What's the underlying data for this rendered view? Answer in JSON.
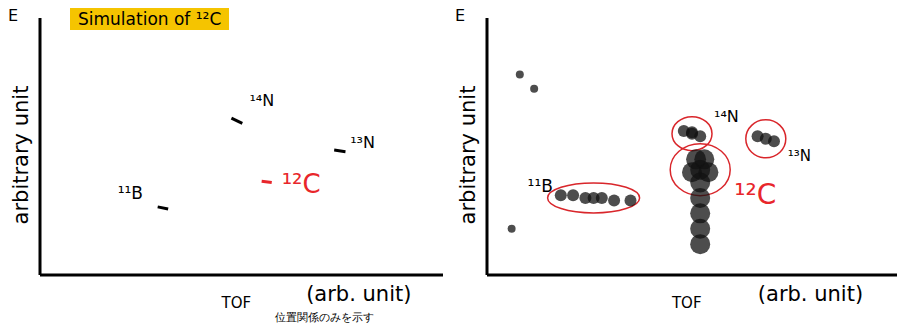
{
  "chart_data": [
    {
      "type": "scatter",
      "title": "Simulation of ¹²C",
      "xlabel": "TOF",
      "x_unit_label": "(arb. unit)",
      "ylabel": "arbitrary unit",
      "y_corner_label": "E",
      "annotation": "位置関係のみを示す",
      "xlim": [
        0,
        100
      ],
      "ylim": [
        0,
        100
      ],
      "tick_labels": false,
      "marker": "none",
      "line_style": "solid",
      "series": [
        {
          "name": "¹⁴N",
          "color": "#000000",
          "x": [
            47.5,
            50.2
          ],
          "values": [
            61,
            59
          ]
        },
        {
          "name": "¹³N",
          "color": "#000000",
          "x": [
            73,
            75.8
          ],
          "values": [
            48.6,
            48
          ]
        },
        {
          "name": "¹¹B",
          "color": "#000000",
          "x": [
            29.2,
            31.8
          ],
          "values": [
            26.5,
            25.7
          ]
        },
        {
          "name": "¹²C",
          "color": "#e8262b",
          "x": [
            55,
            57.5
          ],
          "values": [
            36.5,
            36
          ]
        }
      ]
    },
    {
      "type": "scatter",
      "xlabel": "TOF",
      "x_unit_label": "(arb. unit)",
      "ylabel": "arbitrary unit",
      "y_corner_label": "E",
      "xlim": [
        0,
        100
      ],
      "ylim": [
        0,
        100
      ],
      "tick_labels": false,
      "marker": "circle",
      "series": [
        {
          "name": "¹⁴N",
          "color": "#000000",
          "x": [
            50,
            48,
            52,
            50
          ],
          "values": [
            55,
            56,
            54,
            55.5
          ]
        },
        {
          "name": "¹³N",
          "color": "#000000",
          "x": [
            68,
            66,
            70
          ],
          "values": [
            53,
            54,
            52
          ]
        },
        {
          "name": "¹²C",
          "color": "#e8262b",
          "x": [
            52,
            51,
            53,
            50,
            54,
            52,
            52,
            52,
            52,
            52
          ],
          "values": [
            41,
            45,
            45,
            40,
            40,
            36,
            30,
            24,
            18,
            12
          ]
        },
        {
          "name": "¹¹B",
          "color": "#000000",
          "x": [
            26,
            21,
            24,
            28,
            31,
            35,
            18
          ],
          "values": [
            30,
            31,
            30,
            30,
            29,
            29,
            31
          ]
        },
        {
          "color": "#000000",
          "x": [
            8,
            11.5,
            6
          ],
          "values": [
            78,
            72.5,
            18
          ]
        }
      ]
    }
  ]
}
